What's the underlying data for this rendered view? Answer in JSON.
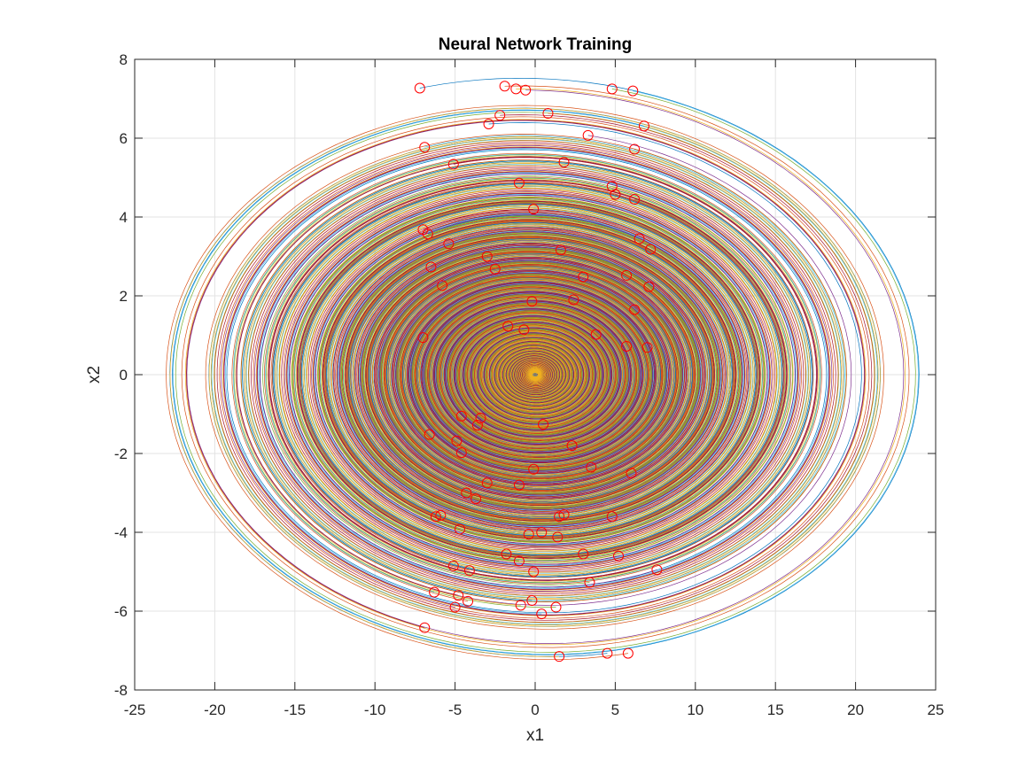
{
  "chart_data": {
    "type": "line",
    "title": "Neural Network Training",
    "xlabel": "x1",
    "ylabel": "x2",
    "xlim": [
      -25,
      25
    ],
    "ylim": [
      -8,
      8
    ],
    "xticks": [
      -25,
      -20,
      -15,
      -10,
      -5,
      0,
      5,
      10,
      15,
      20,
      25
    ],
    "yticks": [
      -8,
      -6,
      -4,
      -2,
      0,
      2,
      4,
      6,
      8
    ],
    "xtick_labels": [
      "-25",
      "-20",
      "-15",
      "-10",
      "-5",
      "0",
      "5",
      "10",
      "15",
      "20",
      "25"
    ],
    "ytick_labels": [
      "-8",
      "-6",
      "-4",
      "-2",
      "0",
      "2",
      "4",
      "6",
      "8"
    ],
    "grid": true,
    "legend": "none",
    "series_colors": [
      "#0072bd",
      "#d95319",
      "#edb120",
      "#7e2f8e",
      "#77ac30",
      "#4dbeee",
      "#a2142f"
    ],
    "marker_color": "#ff0000",
    "marker_style": "circle",
    "initial_points": [
      [
        -7.2,
        7.27
      ],
      [
        -1.9,
        7.32
      ],
      [
        -1.2,
        7.25
      ],
      [
        -0.6,
        7.22
      ],
      [
        4.8,
        7.25
      ],
      [
        6.1,
        7.2
      ],
      [
        -2.2,
        6.58
      ],
      [
        -2.9,
        6.36
      ],
      [
        0.8,
        6.63
      ],
      [
        6.8,
        6.31
      ],
      [
        3.3,
        6.07
      ],
      [
        6.2,
        5.72
      ],
      [
        -6.9,
        5.77
      ],
      [
        -5.1,
        5.34
      ],
      [
        1.8,
        5.39
      ],
      [
        -1.0,
        4.86
      ],
      [
        4.8,
        4.78
      ],
      [
        5.0,
        4.57
      ],
      [
        6.2,
        4.45
      ],
      [
        -0.1,
        4.2
      ],
      [
        -7.0,
        3.68
      ],
      [
        -6.7,
        3.57
      ],
      [
        6.5,
        3.45
      ],
      [
        -5.4,
        3.32
      ],
      [
        7.2,
        3.18
      ],
      [
        1.6,
        3.16
      ],
      [
        -3.0,
        3.0
      ],
      [
        -6.5,
        2.73
      ],
      [
        -2.5,
        2.68
      ],
      [
        3.0,
        2.48
      ],
      [
        5.7,
        2.52
      ],
      [
        -5.8,
        2.26
      ],
      [
        7.1,
        2.23
      ],
      [
        -0.2,
        1.86
      ],
      [
        2.4,
        1.9
      ],
      [
        6.2,
        1.65
      ],
      [
        -1.7,
        1.23
      ],
      [
        -0.7,
        1.14
      ],
      [
        3.8,
        1.02
      ],
      [
        -7.0,
        0.94
      ],
      [
        5.7,
        0.72
      ],
      [
        7.0,
        0.69
      ],
      [
        -4.6,
        -1.05
      ],
      [
        -3.4,
        -1.1
      ],
      [
        -3.6,
        -1.28
      ],
      [
        0.5,
        -1.26
      ],
      [
        -6.6,
        -1.52
      ],
      [
        -4.9,
        -1.68
      ],
      [
        2.3,
        -1.8
      ],
      [
        -4.6,
        -1.98
      ],
      [
        -0.1,
        -2.4
      ],
      [
        3.5,
        -2.35
      ],
      [
        6.0,
        -2.5
      ],
      [
        -3.0,
        -2.75
      ],
      [
        -1.0,
        -2.8
      ],
      [
        -4.3,
        -3.0
      ],
      [
        -3.7,
        -3.15
      ],
      [
        -6.2,
        -3.6
      ],
      [
        -5.9,
        -3.57
      ],
      [
        1.5,
        -3.6
      ],
      [
        1.8,
        -3.55
      ],
      [
        4.8,
        -3.6
      ],
      [
        -4.7,
        -3.92
      ],
      [
        -0.4,
        -4.05
      ],
      [
        0.4,
        -4.0
      ],
      [
        1.4,
        -4.12
      ],
      [
        -1.8,
        -4.55
      ],
      [
        -1.0,
        -4.73
      ],
      [
        3.0,
        -4.55
      ],
      [
        5.2,
        -4.6
      ],
      [
        -5.1,
        -4.85
      ],
      [
        -4.1,
        -4.97
      ],
      [
        -0.1,
        -5.0
      ],
      [
        7.6,
        -4.95
      ],
      [
        3.4,
        -5.27
      ],
      [
        -6.3,
        -5.52
      ],
      [
        -4.8,
        -5.6
      ],
      [
        -0.2,
        -5.73
      ],
      [
        -4.2,
        -5.75
      ],
      [
        -0.9,
        -5.85
      ],
      [
        -5.0,
        -5.9
      ],
      [
        1.3,
        -5.9
      ],
      [
        0.4,
        -6.07
      ],
      [
        -6.9,
        -6.42
      ],
      [
        4.5,
        -7.07
      ],
      [
        5.8,
        -7.07
      ],
      [
        1.5,
        -7.15
      ]
    ]
  }
}
